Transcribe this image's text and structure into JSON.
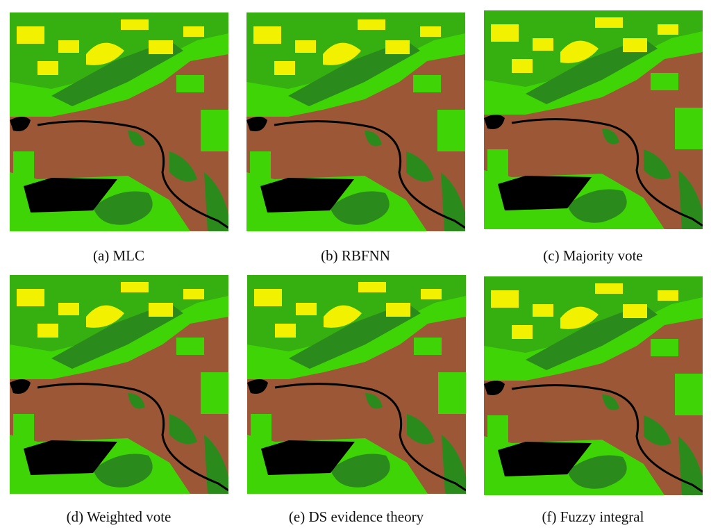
{
  "figure": {
    "panels": [
      {
        "caption": "(a) MLC"
      },
      {
        "caption": "(b) RBFNN"
      },
      {
        "caption": "(c) Majority vote"
      },
      {
        "caption": "(d) Weighted vote"
      },
      {
        "caption": "(e) DS evidence theory"
      },
      {
        "caption": "(f) Fuzzy integral"
      }
    ]
  }
}
